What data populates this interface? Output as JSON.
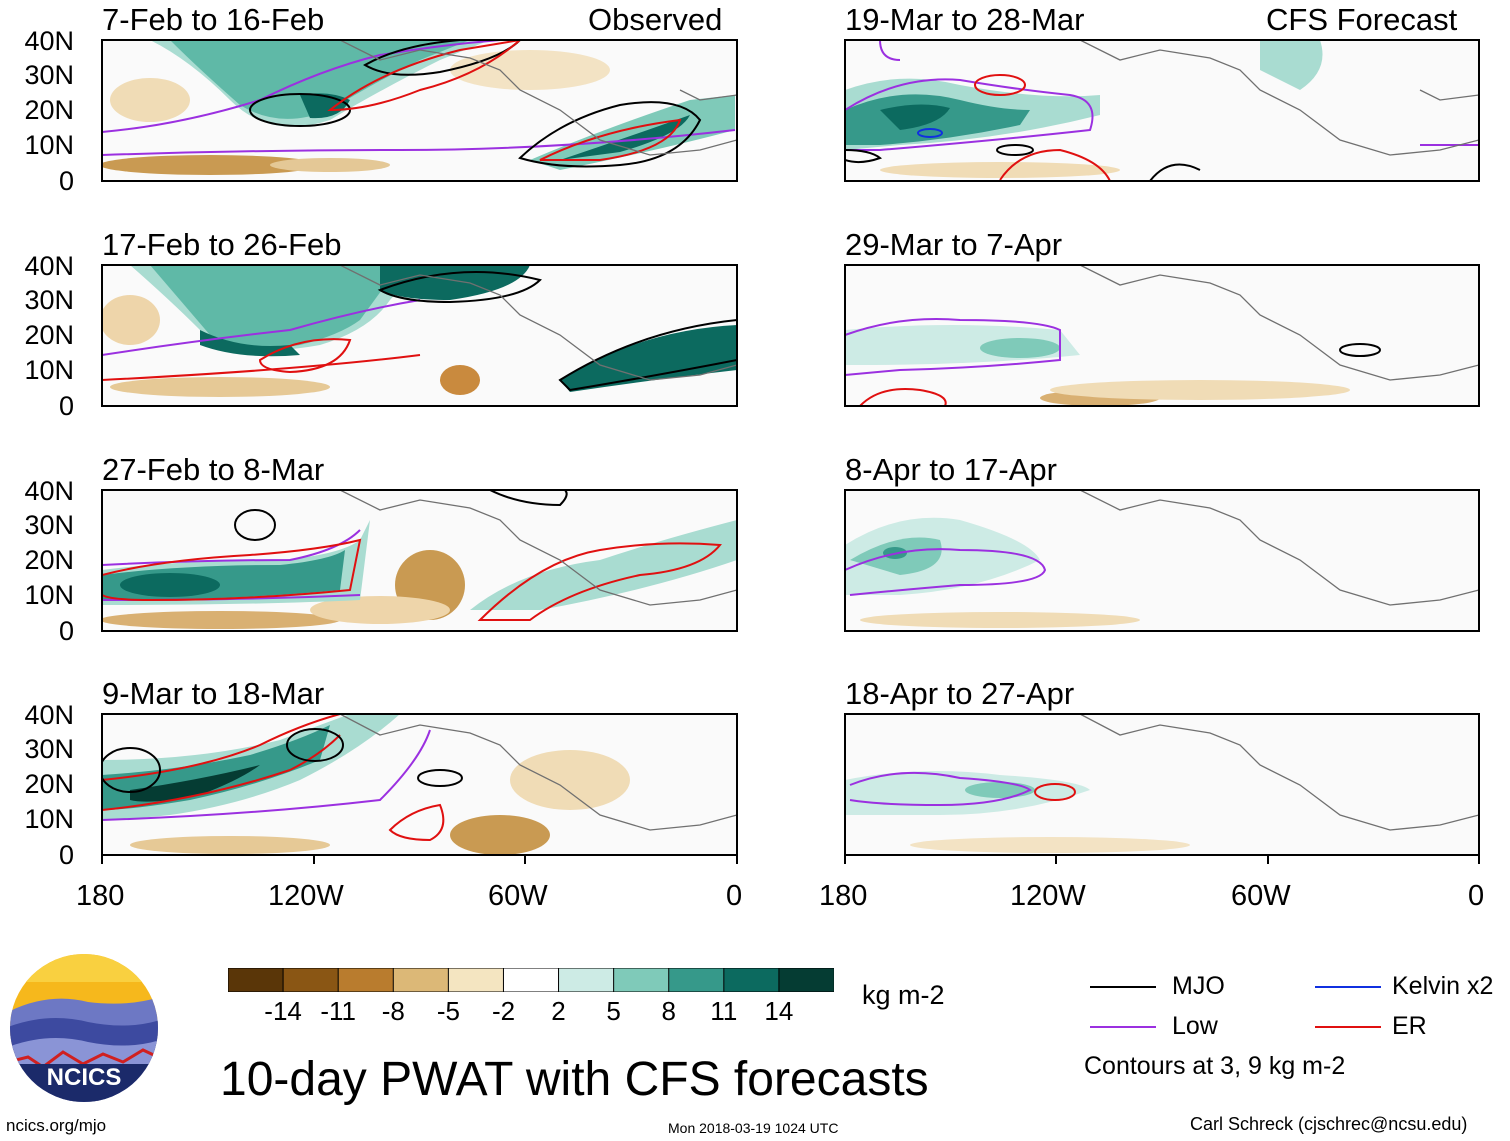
{
  "title": "10-day PWAT with CFS forecasts",
  "units": "kg m-2",
  "observed_label": "Observed",
  "forecast_label": "CFS Forecast",
  "panels_left": [
    {
      "period": "7-Feb to 16-Feb"
    },
    {
      "period": "17-Feb to 26-Feb"
    },
    {
      "period": "27-Feb to 8-Mar"
    },
    {
      "period": "9-Mar to 18-Mar"
    }
  ],
  "panels_right": [
    {
      "period": "19-Mar to 28-Mar"
    },
    {
      "period": "29-Mar to 7-Apr"
    },
    {
      "period": "8-Apr to 17-Apr"
    },
    {
      "period": "18-Apr to 27-Apr"
    }
  ],
  "lat_ticks": [
    "40N",
    "30N",
    "20N",
    "10N",
    "0"
  ],
  "lon_ticks": [
    "180",
    "120W",
    "60W",
    "0"
  ],
  "colorbar": {
    "ticks": [
      "-14",
      "-11",
      "-8",
      "-5",
      "-2",
      "2",
      "5",
      "8",
      "11",
      "14"
    ],
    "colors": [
      "#5a3608",
      "#8a5614",
      "#b97c2e",
      "#dcb877",
      "#f4e5c1",
      "#ffffff",
      "#cdebe5",
      "#7fcab9",
      "#36998a",
      "#0c6a5f",
      "#053c33"
    ]
  },
  "legend": {
    "mjo": "MJO",
    "kelvin": "Kelvin x2",
    "low": "Low",
    "er": "ER",
    "mjo_color": "#000000",
    "kelvin_color": "#1030e0",
    "low_color": "#9b30e0",
    "er_color": "#e01010",
    "note": "Contours at 3, 9 kg m-2"
  },
  "logo": {
    "text": "NCICS"
  },
  "footer": {
    "url": "ncics.org/mjo",
    "timestamp": "Mon 2018-03-19 1024 UTC",
    "author": "Carl Schreck (cjschrec@ncsu.edu)"
  }
}
